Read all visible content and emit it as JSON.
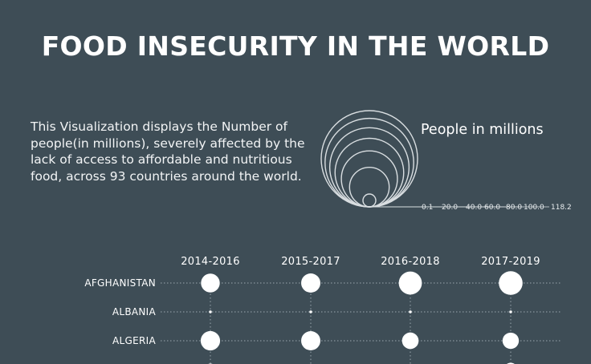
{
  "header": {
    "title": "FOOD INSECURITY IN THE WORLD",
    "description": "This Visualization displays the Number of people(in millions), severely affected by the lack of access to affordable and nutritious food, across 93 countries around the world."
  },
  "colors": {
    "background": "#3e4d56",
    "mark": "#ffffff",
    "legend_ring": "#d9dee1",
    "dotted_line": "#9aa6ad"
  },
  "chart_data": {
    "type": "scatter",
    "legend": {
      "title": "People in millions",
      "values": [
        0.1,
        20.0,
        40.0,
        60.0,
        80.0,
        100.0,
        118.2
      ],
      "labels": [
        "0.1",
        "20.0",
        "40.0",
        "60.0",
        "80.0",
        "100.0",
        "118.2"
      ]
    },
    "x": [
      "2014-2016",
      "2015-2017",
      "2016-2018",
      "2017-2019"
    ],
    "categories": [
      "AFGHANISTAN",
      "ALBANIA",
      "ALGERIA"
    ],
    "series": [
      {
        "name": "AFGHANISTAN",
        "values": [
          4.5,
          4.7,
          6.8,
          7.2
        ]
      },
      {
        "name": "ALBANIA",
        "values": [
          0.1,
          0.1,
          0.1,
          0.1
        ]
      },
      {
        "name": "ALGERIA",
        "values": [
          4.8,
          4.7,
          3.5,
          3.4
        ]
      }
    ]
  }
}
